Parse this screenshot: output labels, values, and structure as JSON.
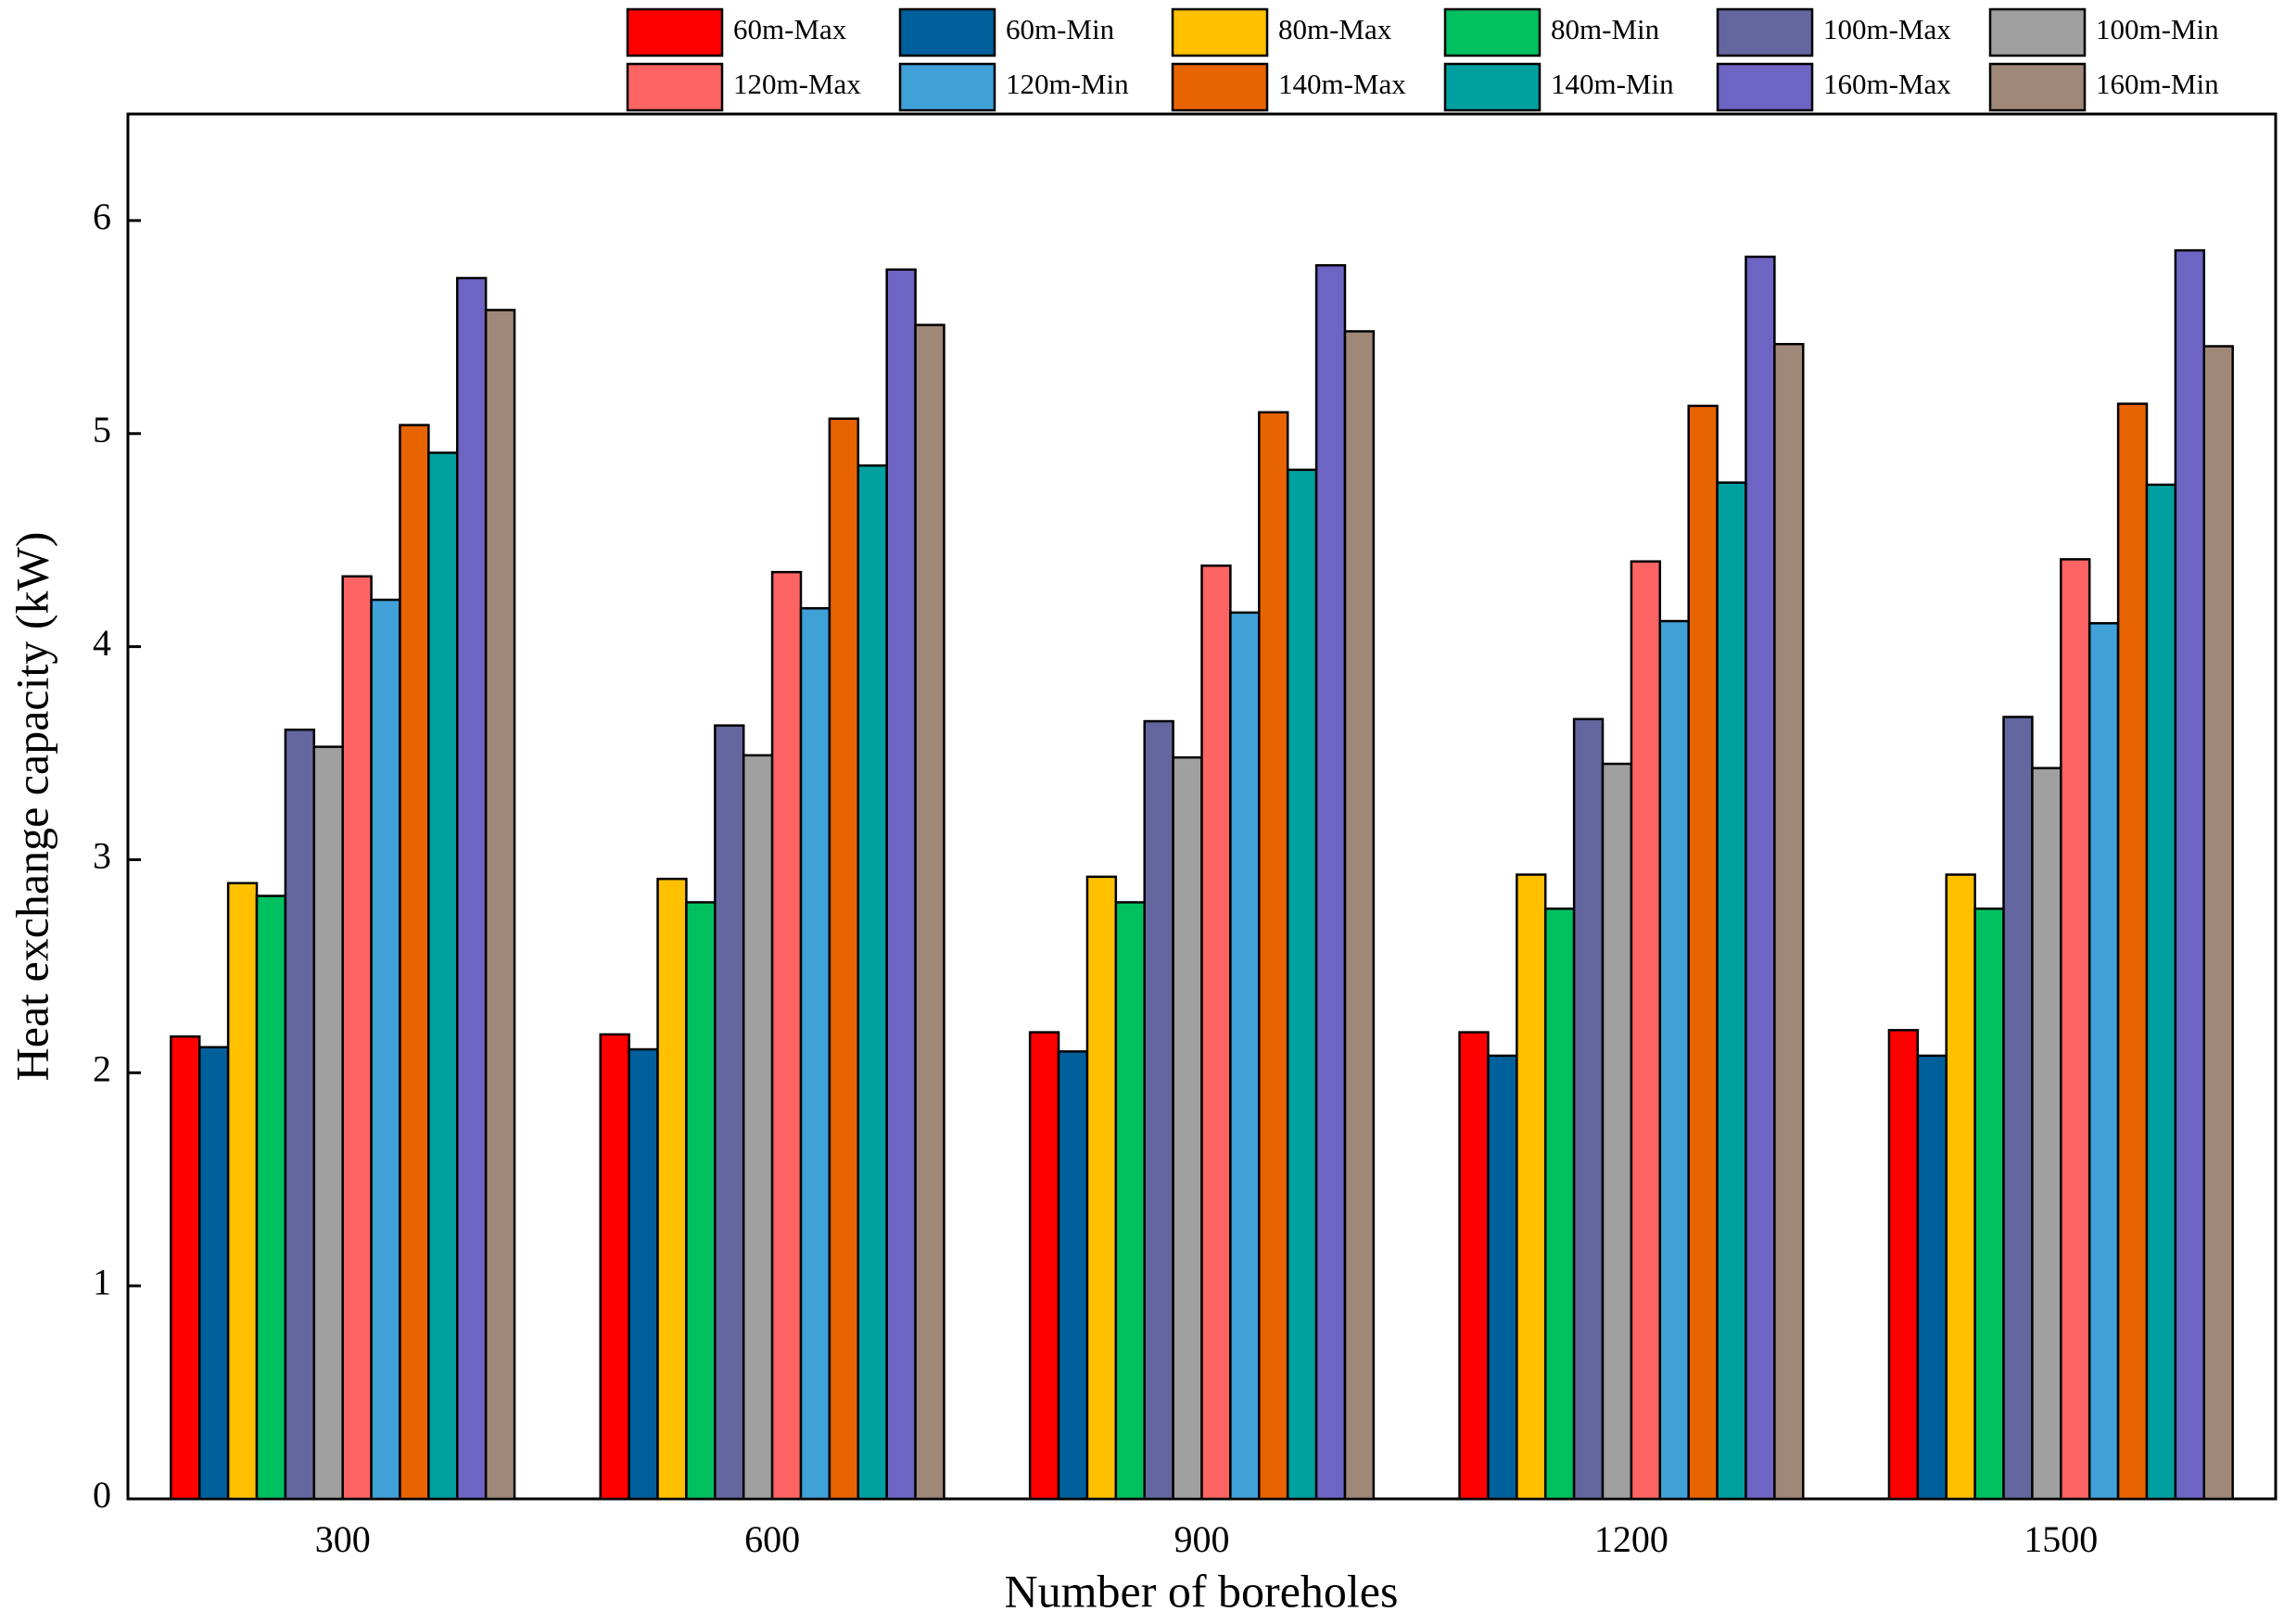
{
  "chart_data": {
    "type": "bar",
    "x_label": "Number of boreholes",
    "y_label": "Heat exchange capacity (kW)",
    "categories": [
      "300",
      "600",
      "900",
      "1200",
      "1500"
    ],
    "series": [
      {
        "name": "60m-Max",
        "color": "#ff0000",
        "values": [
          2.17,
          2.18,
          2.19,
          2.19,
          2.2
        ]
      },
      {
        "name": "60m-Min",
        "color": "#00609c",
        "values": [
          2.12,
          2.11,
          2.1,
          2.08,
          2.08
        ]
      },
      {
        "name": "80m-Max",
        "color": "#ffc000",
        "values": [
          2.89,
          2.91,
          2.92,
          2.93,
          2.93
        ]
      },
      {
        "name": "80m-Min",
        "color": "#00c060",
        "values": [
          2.83,
          2.8,
          2.8,
          2.77,
          2.77
        ]
      },
      {
        "name": "100m-Max",
        "color": "#6466a0",
        "values": [
          3.61,
          3.63,
          3.65,
          3.66,
          3.67
        ]
      },
      {
        "name": "100m-Min",
        "color": "#a0a0a0",
        "values": [
          3.53,
          3.49,
          3.48,
          3.45,
          3.43
        ]
      },
      {
        "name": "120m-Max",
        "color": "#ff6464",
        "values": [
          4.33,
          4.35,
          4.38,
          4.4,
          4.41
        ]
      },
      {
        "name": "120m-Min",
        "color": "#40a0d8",
        "values": [
          4.22,
          4.18,
          4.16,
          4.12,
          4.11
        ]
      },
      {
        "name": "140m-Max",
        "color": "#e86400",
        "values": [
          5.04,
          5.07,
          5.1,
          5.13,
          5.14
        ]
      },
      {
        "name": "140m-Min",
        "color": "#00a0a0",
        "values": [
          4.91,
          4.85,
          4.83,
          4.77,
          4.76
        ]
      },
      {
        "name": "160m-Max",
        "color": "#6e64c4",
        "values": [
          5.73,
          5.77,
          5.79,
          5.83,
          5.86
        ]
      },
      {
        "name": "160m-Min",
        "color": "#a08878",
        "values": [
          5.58,
          5.51,
          5.48,
          5.42,
          5.41
        ]
      }
    ],
    "ylim": [
      0,
      6.5
    ],
    "yticks": [
      0,
      1,
      2,
      3,
      4,
      5,
      6
    ],
    "grid": false
  }
}
